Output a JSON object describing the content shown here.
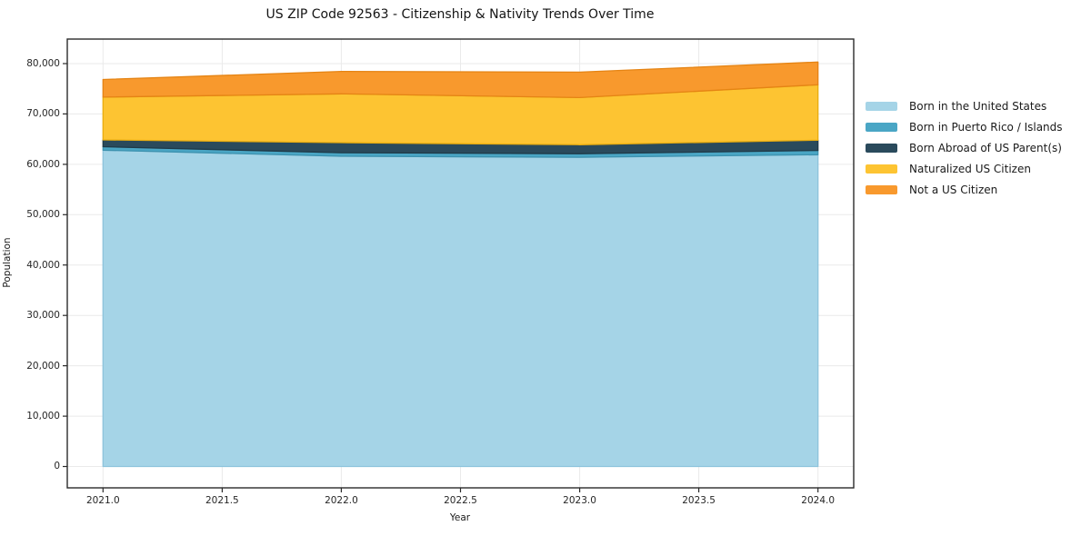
{
  "title": "US ZIP Code 92563 - Citizenship & Nativity Trends Over Time",
  "chart_data": {
    "type": "area",
    "stacked": true,
    "title": "US ZIP Code 92563 - Citizenship & Nativity Trends Over Time",
    "xlabel": "Year",
    "ylabel": "Population",
    "x": [
      2021,
      2022,
      2023,
      2024
    ],
    "series": [
      {
        "name": "Born in the United States",
        "color": "#a5d4e7",
        "edge": "#8ec4dc",
        "values": [
          62800,
          61600,
          61400,
          61900
        ]
      },
      {
        "name": "Born in Puerto Rico / Islands",
        "color": "#4aa6c5",
        "edge": "#3d92af",
        "values": [
          700,
          700,
          700,
          850
        ]
      },
      {
        "name": "Born Abroad of US Parent(s)",
        "color": "#2a4a5c",
        "edge": "#1f3a48",
        "values": [
          1350,
          2000,
          1800,
          2050
        ]
      },
      {
        "name": "Naturalized US Citizen",
        "color": "#fdc432",
        "edge": "#e9ad10",
        "values": [
          8500,
          9700,
          9350,
          11000
        ]
      },
      {
        "name": "Not a US Citizen",
        "color": "#f8992d",
        "edge": "#e58414",
        "values": [
          3500,
          4450,
          5050,
          4500
        ]
      }
    ],
    "x_ticks": [
      "2021.0",
      "2021.5",
      "2022.0",
      "2022.5",
      "2023.0",
      "2023.5",
      "2024.0"
    ],
    "x_tick_values": [
      2021,
      2021.5,
      2022,
      2022.5,
      2023,
      2023.5,
      2024
    ],
    "y_ticks": [
      "0",
      "10,000",
      "20,000",
      "30,000",
      "40,000",
      "50,000",
      "60,000",
      "70,000",
      "80,000"
    ],
    "y_tick_values": [
      0,
      10000,
      20000,
      30000,
      40000,
      50000,
      60000,
      70000,
      80000
    ],
    "xlim": [
      2020.85,
      2024.15
    ],
    "ylim": [
      -4240,
      84870
    ],
    "grid": true,
    "grid_color": "#eaeaea",
    "spine_color": "#2a2a2a",
    "legend_position": "right"
  }
}
